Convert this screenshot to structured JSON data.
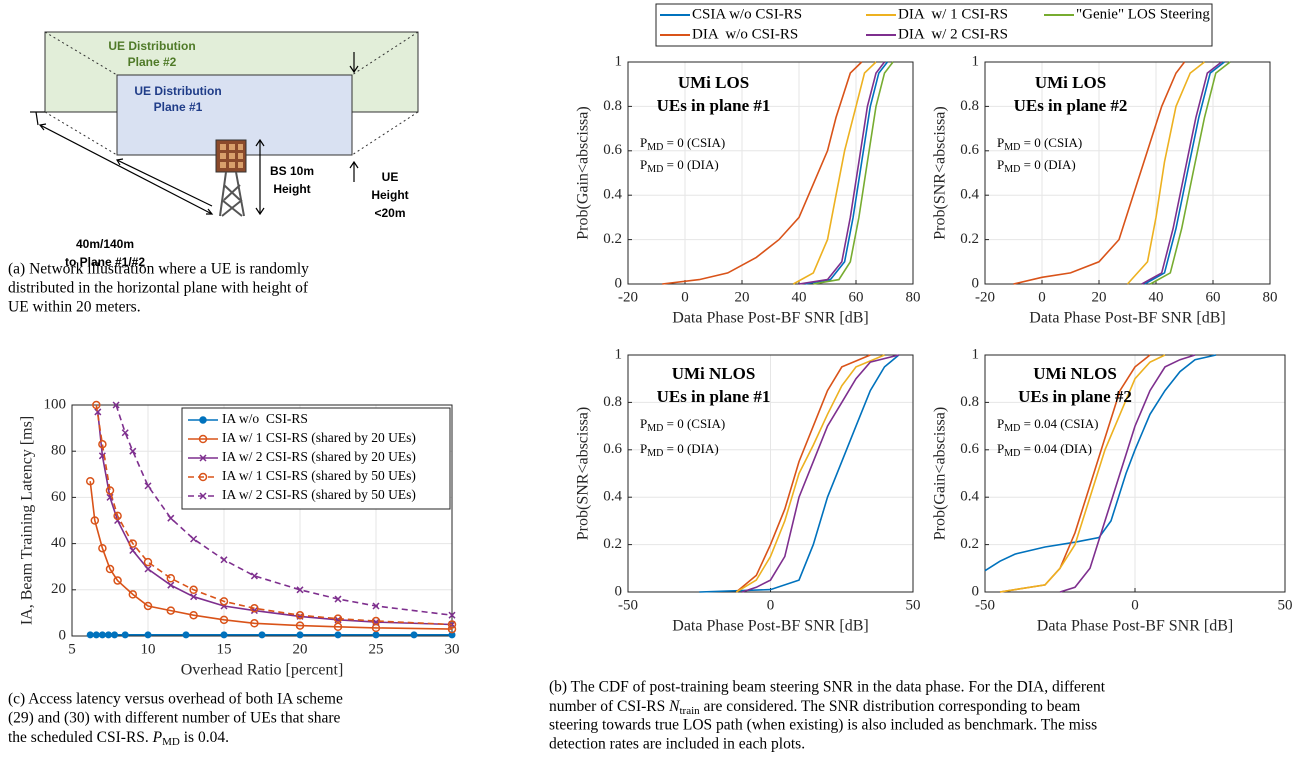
{
  "figure_a": {
    "plane2": [
      "UE Distribution",
      "Plane #2"
    ],
    "plane1": [
      "UE Distribution",
      "Plane #1"
    ],
    "bs": [
      "BS 10m",
      "Height"
    ],
    "ue": [
      "UE",
      "Height",
      "<20m"
    ],
    "distance": [
      "40m/140m",
      "to Plane #1/#2"
    ]
  },
  "caption_a": [
    "(a) Network illustration where a UE is randomly",
    "distributed in the horizontal plane with height of",
    "UE within 20 meters."
  ],
  "caption_b": {
    "line1": "(b) The CDF of post-training beam steering SNR in the data phase. For the DIA, different",
    "line2_start": "number of CSI-RS ",
    "symbol": "N",
    "sub": "train",
    "line2_end": " are considered. The SNR distribution corresponding to beam",
    "line3": "steering towards true LOS path (when existing) is also included as benchmark. The miss",
    "line4": "detection rates are included in each plots."
  },
  "caption_c": {
    "line1": "(c) Access latency versus overhead of both IA scheme",
    "line2": "(29) and (30) with different number of UEs that share",
    "line3_start": "the scheduled CSI-RS. ",
    "symbol": "P",
    "sub": "MD",
    "line3_end": " is 0.04."
  },
  "chart_data": [
    {
      "type": "line",
      "legend": "outside top",
      "grid": true,
      "title_lines": [
        "UMi LOS",
        "UEs in plane #1"
      ],
      "notes": [
        {
          "main": "P",
          "sub": "MD",
          "rest": " = 0 (CSIA)"
        },
        {
          "main": "P",
          "sub": "MD",
          "rest": " = 0 (DIA)"
        }
      ],
      "xlabel": "Data Phase Post-BF SNR [dB]",
      "ylabel": "Prob(Gain<abscissa)",
      "xlim": [
        -20,
        80
      ],
      "ylim": [
        0,
        1
      ],
      "xticks": [
        -20,
        0,
        20,
        40,
        60,
        80
      ],
      "yticks": [
        0,
        0.2,
        0.4,
        0.6,
        0.8,
        1
      ],
      "series": [
        {
          "name": "CSIA w/o CSI-RS",
          "color": "#0072BD",
          "x": [
            42,
            51,
            56,
            59,
            62,
            65,
            68,
            71
          ],
          "values": [
            0,
            0.02,
            0.1,
            0.3,
            0.55,
            0.8,
            0.95,
            1
          ]
        },
        {
          "name": "DIA  w/o CSI-RS",
          "color": "#D95319",
          "x": [
            -8,
            5,
            15,
            25,
            33,
            40,
            45,
            50,
            53,
            58,
            62
          ],
          "values": [
            0,
            0.02,
            0.05,
            0.12,
            0.2,
            0.3,
            0.45,
            0.6,
            0.75,
            0.95,
            1
          ]
        },
        {
          "name": "DIA  w/ 1 CSI-RS",
          "color": "#EDB120",
          "x": [
            38,
            45,
            50,
            53,
            56,
            60,
            63,
            67
          ],
          "values": [
            0,
            0.05,
            0.2,
            0.4,
            0.6,
            0.8,
            0.95,
            1
          ]
        },
        {
          "name": "DIA  w/ 2 CSI-RS",
          "color": "#7E2F8E",
          "x": [
            40,
            50,
            55,
            58,
            61,
            64,
            67,
            70
          ],
          "values": [
            0,
            0.02,
            0.1,
            0.3,
            0.55,
            0.8,
            0.95,
            1
          ]
        },
        {
          "name": "\"Genie\" LOS Steering",
          "color": "#77AC30",
          "x": [
            45,
            54,
            58,
            61,
            64,
            67,
            70,
            73
          ],
          "values": [
            0,
            0.02,
            0.1,
            0.3,
            0.55,
            0.8,
            0.95,
            1
          ]
        }
      ]
    },
    {
      "type": "line",
      "grid": true,
      "title_lines": [
        "UMi LOS",
        "UEs in plane #2"
      ],
      "notes": [
        {
          "main": "P",
          "sub": "MD",
          "rest": " = 0 (CSIA)"
        },
        {
          "main": "P",
          "sub": "MD",
          "rest": " = 0 (DIA)"
        }
      ],
      "xlabel": "Data Phase Post-BF SNR [dB]",
      "ylabel": "Prob(SNR<abscissa)",
      "xlim": [
        -20,
        80
      ],
      "ylim": [
        0,
        1
      ],
      "xticks": [
        -20,
        0,
        20,
        40,
        60,
        80
      ],
      "yticks": [
        0,
        0.2,
        0.4,
        0.6,
        0.8,
        1
      ],
      "series": [
        {
          "color": "#0072BD",
          "x": [
            36,
            43,
            47,
            51,
            55,
            59,
            64
          ],
          "values": [
            0,
            0.05,
            0.25,
            0.5,
            0.75,
            0.95,
            1
          ]
        },
        {
          "color": "#D95319",
          "x": [
            -10,
            0,
            10,
            20,
            27,
            32,
            37,
            42,
            47,
            50
          ],
          "values": [
            0,
            0.03,
            0.05,
            0.1,
            0.2,
            0.4,
            0.6,
            0.8,
            0.95,
            1
          ]
        },
        {
          "color": "#EDB120",
          "x": [
            30,
            37,
            40,
            43,
            47,
            52,
            57
          ],
          "values": [
            0,
            0.1,
            0.3,
            0.55,
            0.8,
            0.95,
            1
          ]
        },
        {
          "color": "#7E2F8E",
          "x": [
            35,
            42,
            46,
            50,
            54,
            58,
            63
          ],
          "values": [
            0,
            0.05,
            0.25,
            0.5,
            0.75,
            0.95,
            1
          ]
        },
        {
          "color": "#77AC30",
          "x": [
            38,
            45,
            49,
            53,
            57,
            61,
            66
          ],
          "values": [
            0,
            0.05,
            0.25,
            0.5,
            0.75,
            0.95,
            1
          ]
        }
      ]
    },
    {
      "type": "line",
      "grid": true,
      "title_lines": [
        "UMi NLOS",
        "UEs in plane #1"
      ],
      "notes": [
        {
          "main": "P",
          "sub": "MD",
          "rest": " = 0 (CSIA)"
        },
        {
          "main": "P",
          "sub": "MD",
          "rest": " = 0 (DIA)"
        }
      ],
      "xlabel": "Data Phase Post-BF SNR [dB]",
      "ylabel": "Prob(SNR<abscissa)",
      "xlim": [
        -50,
        50
      ],
      "ylim": [
        0,
        1
      ],
      "xticks": [
        -50,
        0,
        50
      ],
      "yticks": [
        0,
        0.2,
        0.4,
        0.6,
        0.8,
        1
      ],
      "series": [
        {
          "color": "#0072BD",
          "x": [
            -25,
            0,
            10,
            15,
            20,
            25,
            30,
            35,
            40,
            45
          ],
          "values": [
            0,
            0.01,
            0.05,
            0.2,
            0.4,
            0.55,
            0.7,
            0.85,
            0.95,
            1
          ]
        },
        {
          "color": "#D95319",
          "x": [
            -12,
            -5,
            0,
            5,
            10,
            15,
            20,
            25,
            35
          ],
          "values": [
            0,
            0.07,
            0.2,
            0.35,
            0.55,
            0.7,
            0.85,
            0.95,
            1
          ]
        },
        {
          "color": "#EDB120",
          "x": [
            -12,
            -5,
            0,
            5,
            10,
            15,
            20,
            25,
            30,
            40
          ],
          "values": [
            0,
            0.05,
            0.15,
            0.3,
            0.5,
            0.62,
            0.75,
            0.87,
            0.95,
            1
          ]
        },
        {
          "color": "#7E2F8E",
          "x": [
            -10,
            -5,
            0,
            5,
            10,
            15,
            20,
            25,
            30,
            35,
            45
          ],
          "values": [
            0,
            0.02,
            0.05,
            0.15,
            0.4,
            0.55,
            0.7,
            0.8,
            0.9,
            0.97,
            1
          ]
        }
      ]
    },
    {
      "type": "line",
      "grid": true,
      "title_lines": [
        "UMi NLOS",
        "UEs in plane #2"
      ],
      "notes": [
        {
          "main": "P",
          "sub": "MD",
          "rest": " = 0.04 (CSIA)"
        },
        {
          "main": "P",
          "sub": "MD",
          "rest": " = 0.04 (DIA)"
        }
      ],
      "xlabel": "Data Phase Post-BF SNR [dB]",
      "ylabel": "Prob(Gain<abscissa)",
      "xlim": [
        -50,
        50
      ],
      "ylim": [
        0,
        1
      ],
      "xticks": [
        -50,
        0,
        50
      ],
      "yticks": [
        0,
        0.2,
        0.4,
        0.6,
        0.8,
        1
      ],
      "series": [
        {
          "color": "#0072BD",
          "x": [
            -50,
            -45,
            -40,
            -30,
            -20,
            -12,
            -8,
            -3,
            0,
            5,
            10,
            15,
            20,
            27
          ],
          "values": [
            0.09,
            0.13,
            0.16,
            0.19,
            0.21,
            0.23,
            0.3,
            0.5,
            0.6,
            0.75,
            0.85,
            0.93,
            0.98,
            1
          ]
        },
        {
          "color": "#D95319",
          "x": [
            -45,
            -30,
            -25,
            -20,
            -15,
            -10,
            -5,
            0,
            5
          ],
          "values": [
            0,
            0.03,
            0.1,
            0.25,
            0.45,
            0.65,
            0.85,
            0.95,
            1
          ]
        },
        {
          "color": "#EDB120",
          "x": [
            -45,
            -30,
            -25,
            -20,
            -15,
            -10,
            -5,
            0,
            5,
            10
          ],
          "values": [
            0,
            0.03,
            0.1,
            0.2,
            0.4,
            0.6,
            0.75,
            0.9,
            0.97,
            1
          ]
        },
        {
          "color": "#7E2F8E",
          "x": [
            -25,
            -20,
            -15,
            -10,
            -5,
            0,
            5,
            10,
            15,
            20
          ],
          "values": [
            0,
            0.02,
            0.1,
            0.3,
            0.5,
            0.7,
            0.85,
            0.95,
            0.98,
            1
          ]
        }
      ]
    },
    {
      "type": "line",
      "legend": "upper right",
      "grid": true,
      "xlabel": "Overhead Ratio [percent]",
      "ylabel": "IA, Beam Training Latency [ms]",
      "xlim": [
        5,
        30
      ],
      "ylim": [
        0,
        100
      ],
      "xticks": [
        5,
        10,
        15,
        20,
        25,
        30
      ],
      "yticks": [
        0,
        20,
        40,
        60,
        80,
        100
      ],
      "series": [
        {
          "name": "IA w/o  CSI-RS",
          "color": "#0072BD",
          "linestyle": "solid",
          "marker": "dot",
          "x": [
            6.2,
            6.6,
            7,
            7.4,
            7.8,
            8.5,
            10,
            12.5,
            15,
            17.5,
            20,
            22.5,
            25,
            27.5,
            30
          ],
          "values": [
            0.5,
            0.5,
            0.5,
            0.5,
            0.5,
            0.5,
            0.5,
            0.5,
            0.5,
            0.5,
            0.5,
            0.5,
            0.5,
            0.5,
            0.5
          ]
        },
        {
          "name": "IA w/ 1 CSI-RS (shared by 20 UEs)",
          "color": "#D95319",
          "linestyle": "solid",
          "marker": "circle",
          "x": [
            6.2,
            6.5,
            7,
            7.5,
            8,
            9,
            10,
            11.5,
            13,
            15,
            17,
            20,
            22.5,
            25,
            30
          ],
          "values": [
            67,
            50,
            38,
            29,
            24,
            18,
            13,
            11,
            9,
            7,
            5.5,
            4.5,
            4,
            3.5,
            3
          ]
        },
        {
          "name": "IA w/ 2 CSI-RS (shared by 20 UEs)",
          "color": "#7E2F8E",
          "linestyle": "solid",
          "marker": "x",
          "x": [
            6.7,
            7,
            7.5,
            8,
            9,
            10,
            11.5,
            13,
            15,
            17,
            20,
            22.5,
            25,
            30
          ],
          "values": [
            97,
            78,
            60,
            50,
            37,
            29,
            22,
            17,
            13,
            11,
            8.5,
            7,
            6,
            5
          ]
        },
        {
          "name": "IA w/ 1 CSI-RS (shared by 50 UEs)",
          "color": "#D95319",
          "linestyle": "dashed",
          "marker": "circle",
          "x": [
            6.6,
            7,
            7.5,
            8,
            9,
            10,
            11.5,
            13,
            15,
            17,
            20,
            22.5,
            25,
            30
          ],
          "values": [
            100,
            83,
            63,
            52,
            40,
            32,
            25,
            20,
            15,
            12,
            9,
            7.5,
            6.5,
            5
          ]
        },
        {
          "name": "IA w/ 2 CSI-RS (shared by 50 UEs)",
          "color": "#7E2F8E",
          "linestyle": "dashed",
          "marker": "x",
          "x": [
            7.9,
            8.5,
            9,
            10,
            11.5,
            13,
            15,
            17,
            20,
            22.5,
            25,
            30
          ],
          "values": [
            100,
            88,
            80,
            65,
            51,
            42,
            33,
            26,
            20,
            16,
            13,
            9
          ]
        }
      ]
    }
  ]
}
